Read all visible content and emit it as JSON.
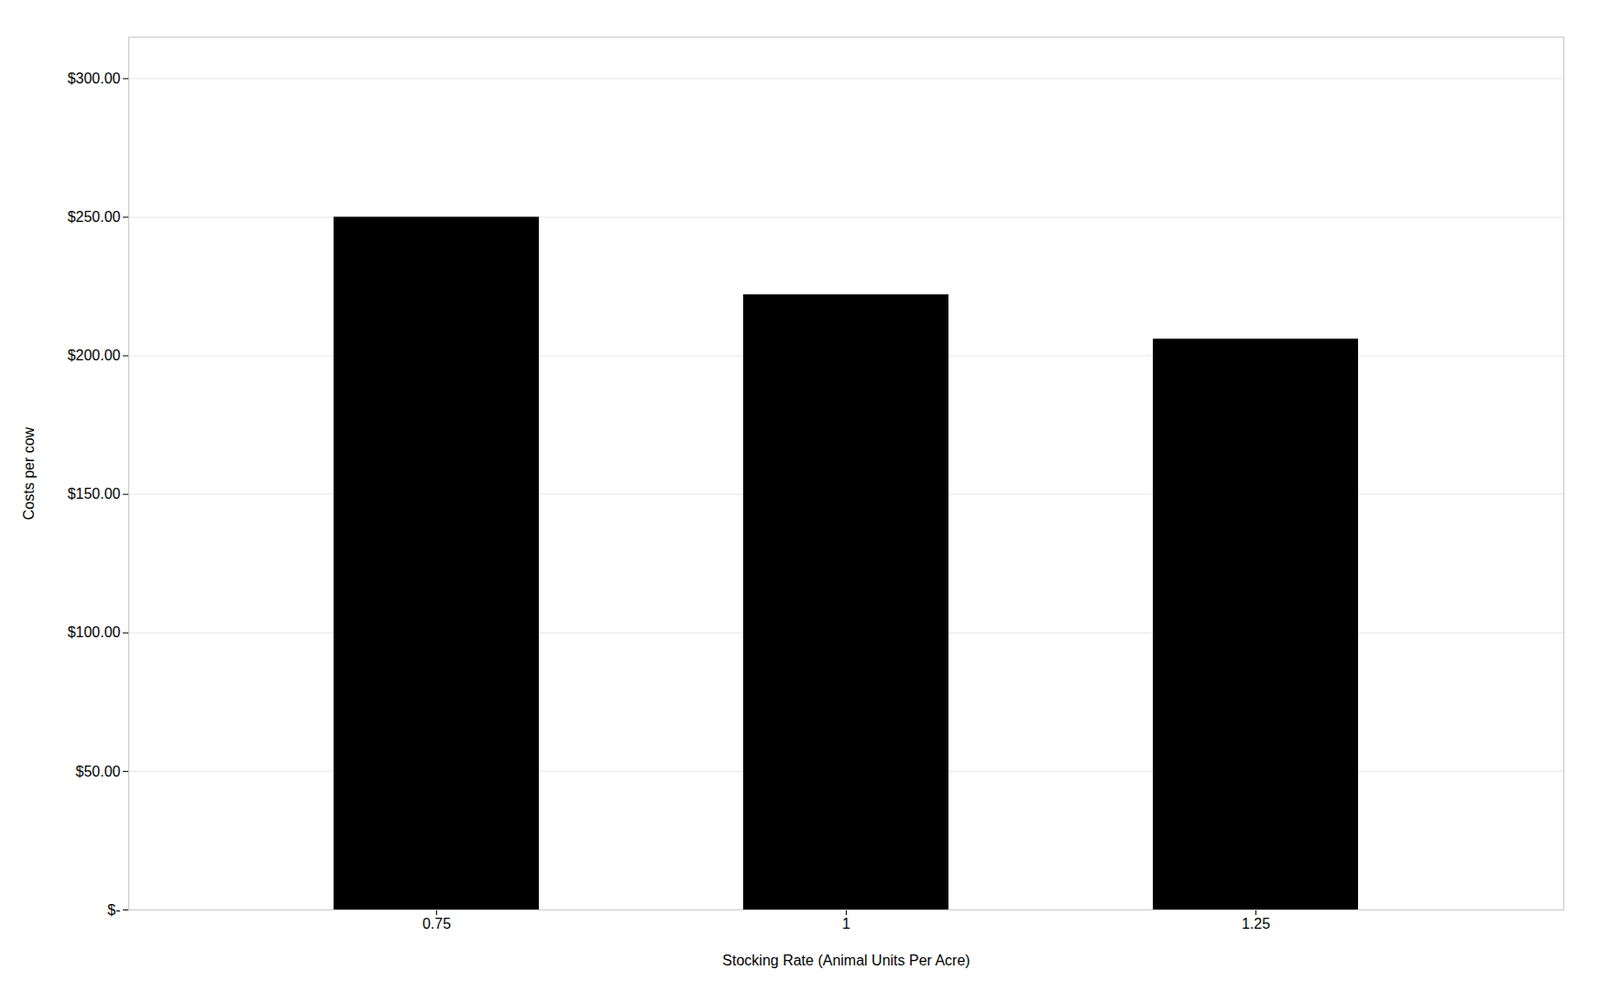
{
  "chart_data": {
    "type": "bar",
    "categories": [
      "0.75",
      "1",
      "1.25"
    ],
    "values": [
      250.0,
      222.0,
      206.0
    ],
    "color": "#000000",
    "xlabel": "Stocking Rate (Animal Units Per Acre)",
    "ylabel": "Costs per cow",
    "ylim": [
      0,
      315
    ],
    "yticks": [
      {
        "value": 0,
        "label": "$-"
      },
      {
        "value": 50,
        "label": "$50.00"
      },
      {
        "value": 100,
        "label": "$100.00"
      },
      {
        "value": 150,
        "label": "$150.00"
      },
      {
        "value": 200,
        "label": "$200.00"
      },
      {
        "value": 250,
        "label": "$250.00"
      },
      {
        "value": 300,
        "label": "$300.00"
      }
    ],
    "grid": true
  }
}
